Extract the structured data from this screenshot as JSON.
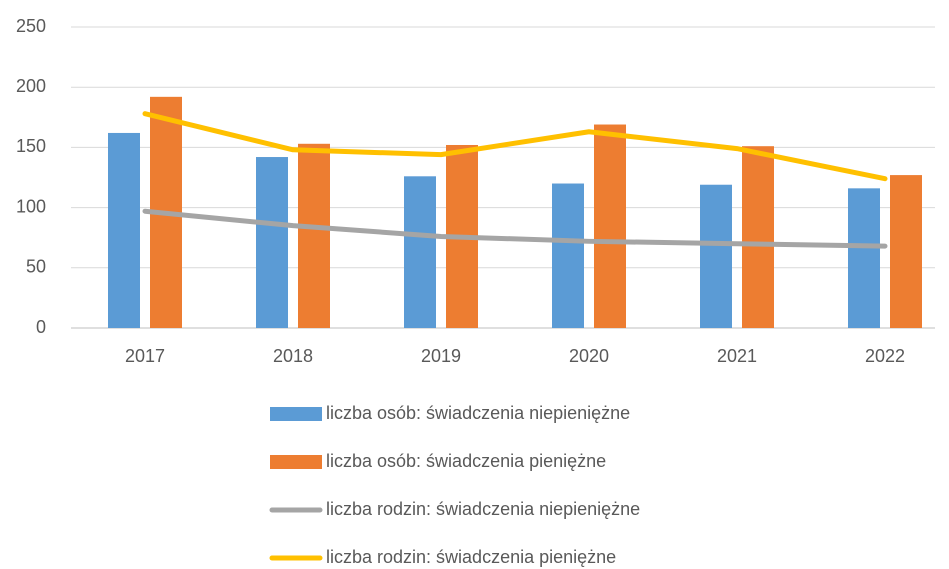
{
  "chart_data": {
    "type": "bar",
    "categories": [
      "2017",
      "2018",
      "2019",
      "2020",
      "2021",
      "2022"
    ],
    "series": [
      {
        "name": "liczba osób: świadczenia niepieniężne",
        "type": "bar",
        "color": "#5b9bd5",
        "values": [
          162,
          142,
          126,
          120,
          119,
          116
        ]
      },
      {
        "name": "liczba osób: świadczenia pieniężne",
        "type": "bar",
        "color": "#ed7d31",
        "values": [
          192,
          153,
          152,
          169,
          151,
          127
        ]
      },
      {
        "name": "liczba rodzin: świadczenia niepieniężne",
        "type": "line",
        "color": "#a5a5a5",
        "values": [
          97,
          85,
          76,
          72,
          70,
          68
        ]
      },
      {
        "name": "liczba rodzin: świadczenia pieniężne",
        "type": "line",
        "color": "#ffc000",
        "values": [
          178,
          148,
          144,
          163,
          149,
          124
        ]
      }
    ],
    "ylim": [
      0,
      250
    ],
    "yticks": [
      0,
      50,
      100,
      150,
      200,
      250
    ],
    "grid": true,
    "legend": "bottom"
  }
}
